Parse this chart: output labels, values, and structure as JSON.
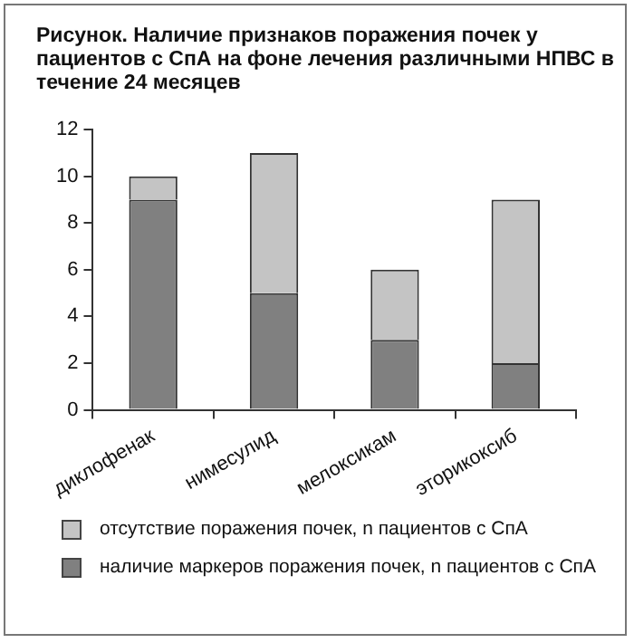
{
  "chart_data": {
    "type": "bar",
    "title": "Рисунок. Наличие признаков поражения почек у пациентов с СпА на фоне лечения различными  НПВС в течение 24 месяцев",
    "categories": [
      "диклофенак",
      "нимесулид",
      "мелоксикам",
      "эторикоксиб"
    ],
    "series": [
      {
        "name": "наличие маркеров поражения почек, n пациентов с СпА",
        "color": "#808080",
        "values": [
          9,
          5,
          3,
          2
        ]
      },
      {
        "name": "отсутствие поражения почек, n пациентов с СпА",
        "color": "#c4c4c4",
        "values": [
          1,
          6,
          3,
          7
        ]
      }
    ],
    "stacked": true,
    "ylim": [
      0,
      12
    ],
    "yticks": [
      0,
      2,
      4,
      6,
      8,
      10,
      12
    ],
    "grid": false,
    "legend": "bottom"
  }
}
